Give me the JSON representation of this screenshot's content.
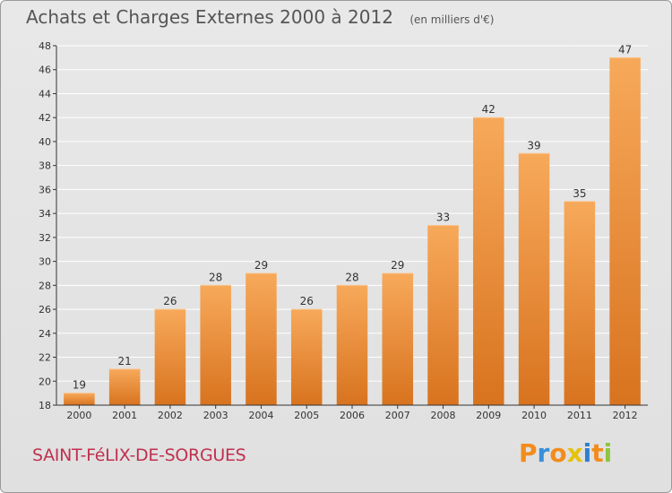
{
  "title": "Achats et Charges Externes 2000 à 2012",
  "unit": "(en milliers d'€)",
  "commune": "SAINT-FéLIX-DE-SORGUES",
  "logo": {
    "text": "Proxiti",
    "letter_colors": [
      "#f28c1b",
      "#3a8fd8",
      "#f28c1b",
      "#e6c20a",
      "#2e7fd0",
      "#f28c1b",
      "#8cc63f"
    ]
  },
  "colors": {
    "bar_top": "#f7a95a",
    "bar_bottom": "#d8731f",
    "grid": "#ffffff",
    "axis": "#333333",
    "text": "#333333"
  },
  "chart_data": {
    "type": "bar",
    "title": "Achats et Charges Externes 2000 à 2012",
    "subtitle": "(en milliers d'€)",
    "categories": [
      "2000",
      "2001",
      "2002",
      "2003",
      "2004",
      "2005",
      "2006",
      "2007",
      "2008",
      "2009",
      "2010",
      "2011",
      "2012"
    ],
    "values": [
      19,
      21,
      26,
      28,
      29,
      26,
      28,
      29,
      33,
      42,
      39,
      35,
      47
    ],
    "ylim": [
      18,
      48
    ],
    "yticks": [
      18,
      20,
      22,
      24,
      26,
      28,
      30,
      32,
      34,
      36,
      38,
      40,
      42,
      44,
      46,
      48
    ],
    "grid": true,
    "data_labels": true
  }
}
